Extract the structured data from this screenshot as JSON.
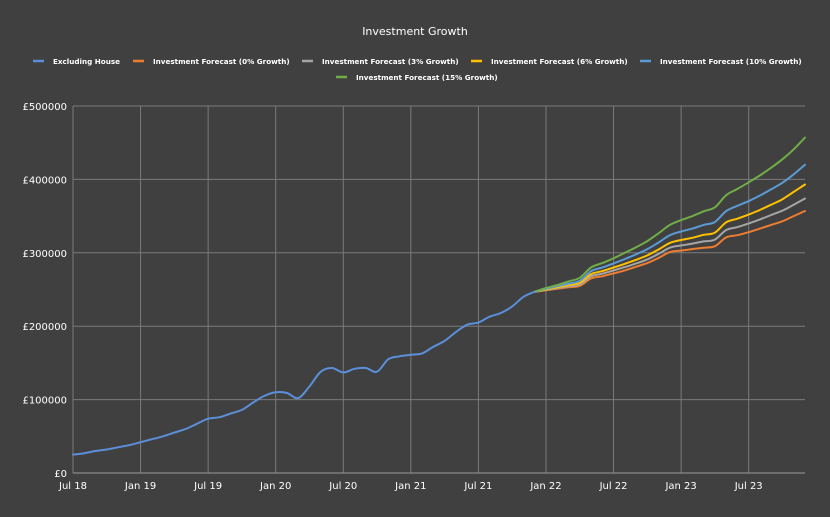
{
  "chart_data": {
    "type": "line",
    "title": "Investment Growth",
    "xlabel": "",
    "ylabel": "",
    "ylim": [
      0,
      500000
    ],
    "yticks": [
      0,
      100000,
      200000,
      300000,
      400000,
      500000
    ],
    "ytick_labels": [
      "£0",
      "£100000",
      "£200000",
      "£300000",
      "£400000",
      "£500000"
    ],
    "xlim": [
      "2018-07",
      "2023-12"
    ],
    "xtick_labels": [
      "Jul 18",
      "Jan 19",
      "Jul 19",
      "Jan 20",
      "Jul 20",
      "Jan 21",
      "Jul 21",
      "Jan 22",
      "Jul 22",
      "Jan 23",
      "Jul 23"
    ],
    "grid": true,
    "legend_position": "top",
    "series": [
      {
        "name": "Excluding House",
        "color": "#5b8fd9",
        "points": [
          [
            "2018-07",
            25000
          ],
          [
            "2018-08",
            27000
          ],
          [
            "2018-09",
            30000
          ],
          [
            "2018-10",
            32000
          ],
          [
            "2018-11",
            35000
          ],
          [
            "2018-12",
            38000
          ],
          [
            "2019-01",
            42000
          ],
          [
            "2019-02",
            46000
          ],
          [
            "2019-03",
            50000
          ],
          [
            "2019-04",
            55000
          ],
          [
            "2019-05",
            60000
          ],
          [
            "2019-06",
            67000
          ],
          [
            "2019-07",
            74000
          ],
          [
            "2019-08",
            76000
          ],
          [
            "2019-09",
            81000
          ],
          [
            "2019-10",
            86000
          ],
          [
            "2019-11",
            96000
          ],
          [
            "2019-12",
            105000
          ],
          [
            "2020-01",
            110000
          ],
          [
            "2020-02",
            109000
          ],
          [
            "2020-03",
            102000
          ],
          [
            "2020-04",
            118000
          ],
          [
            "2020-05",
            138000
          ],
          [
            "2020-06",
            143000
          ],
          [
            "2020-07",
            137000
          ],
          [
            "2020-08",
            142000
          ],
          [
            "2020-09",
            143000
          ],
          [
            "2020-10",
            138000
          ],
          [
            "2020-11",
            155000
          ],
          [
            "2020-12",
            159000
          ],
          [
            "2021-01",
            161000
          ],
          [
            "2021-02",
            163000
          ],
          [
            "2021-03",
            172000
          ],
          [
            "2021-04",
            180000
          ],
          [
            "2021-05",
            192000
          ],
          [
            "2021-06",
            202000
          ],
          [
            "2021-07",
            205000
          ],
          [
            "2021-08",
            213000
          ],
          [
            "2021-09",
            218000
          ],
          [
            "2021-10",
            227000
          ],
          [
            "2021-11",
            240000
          ],
          [
            "2021-12",
            247000
          ]
        ]
      },
      {
        "name": "Investment Forecast (0% Growth)",
        "color": "#ed7d31",
        "points": [
          [
            "2021-12",
            247000
          ],
          [
            "2022-01",
            249000
          ],
          [
            "2022-02",
            251000
          ],
          [
            "2022-03",
            253000
          ],
          [
            "2022-04",
            255000
          ],
          [
            "2022-05",
            265000
          ],
          [
            "2022-06",
            268000
          ],
          [
            "2022-07",
            272000
          ],
          [
            "2022-08",
            276000
          ],
          [
            "2022-09",
            281000
          ],
          [
            "2022-10",
            286000
          ],
          [
            "2022-11",
            293000
          ],
          [
            "2022-12",
            301000
          ],
          [
            "2023-01",
            303000
          ],
          [
            "2023-02",
            305000
          ],
          [
            "2023-03",
            307000
          ],
          [
            "2023-04",
            309000
          ],
          [
            "2023-05",
            321000
          ],
          [
            "2023-06",
            324000
          ],
          [
            "2023-07",
            328000
          ],
          [
            "2023-08",
            333000
          ],
          [
            "2023-09",
            338000
          ],
          [
            "2023-10",
            343000
          ],
          [
            "2023-11",
            350000
          ],
          [
            "2023-12",
            357000
          ]
        ]
      },
      {
        "name": "Investment Forecast (3% Growth)",
        "color": "#a5a5a5",
        "points": [
          [
            "2021-12",
            247000
          ],
          [
            "2022-01",
            249500
          ],
          [
            "2022-02",
            252000
          ],
          [
            "2022-03",
            254500
          ],
          [
            "2022-04",
            257000
          ],
          [
            "2022-05",
            268000
          ],
          [
            "2022-06",
            271500
          ],
          [
            "2022-07",
            276000
          ],
          [
            "2022-08",
            280500
          ],
          [
            "2022-09",
            285500
          ],
          [
            "2022-10",
            291000
          ],
          [
            "2022-11",
            298500
          ],
          [
            "2022-12",
            307000
          ],
          [
            "2023-01",
            310000
          ],
          [
            "2023-02",
            312500
          ],
          [
            "2023-03",
            315500
          ],
          [
            "2023-04",
            318000
          ],
          [
            "2023-05",
            331000
          ],
          [
            "2023-06",
            335000
          ],
          [
            "2023-07",
            340000
          ],
          [
            "2023-08",
            345500
          ],
          [
            "2023-09",
            351500
          ],
          [
            "2023-10",
            357500
          ],
          [
            "2023-11",
            365500
          ],
          [
            "2023-12",
            374000
          ]
        ]
      },
      {
        "name": "Investment Forecast (6% Growth)",
        "color": "#ffc000",
        "points": [
          [
            "2021-12",
            247000
          ],
          [
            "2022-01",
            250000
          ],
          [
            "2022-02",
            253000
          ],
          [
            "2022-03",
            256000
          ],
          [
            "2022-04",
            259000
          ],
          [
            "2022-05",
            271000
          ],
          [
            "2022-06",
            275000
          ],
          [
            "2022-07",
            280000
          ],
          [
            "2022-08",
            285000
          ],
          [
            "2022-09",
            290500
          ],
          [
            "2022-10",
            296500
          ],
          [
            "2022-11",
            304500
          ],
          [
            "2022-12",
            313500
          ],
          [
            "2023-01",
            317500
          ],
          [
            "2023-02",
            320500
          ],
          [
            "2023-03",
            324500
          ],
          [
            "2023-04",
            327500
          ],
          [
            "2023-05",
            341500
          ],
          [
            "2023-06",
            346500
          ],
          [
            "2023-07",
            352000
          ],
          [
            "2023-08",
            358500
          ],
          [
            "2023-09",
            365500
          ],
          [
            "2023-10",
            373000
          ],
          [
            "2023-11",
            383000
          ],
          [
            "2023-12",
            393000
          ]
        ]
      },
      {
        "name": "Investment Forecast (10% Growth)",
        "color": "#5b9bd5",
        "points": [
          [
            "2021-12",
            247000
          ],
          [
            "2022-01",
            251000
          ],
          [
            "2022-02",
            254500
          ],
          [
            "2022-03",
            258000
          ],
          [
            "2022-04",
            262000
          ],
          [
            "2022-05",
            275000
          ],
          [
            "2022-06",
            280000
          ],
          [
            "2022-07",
            285500
          ],
          [
            "2022-08",
            291500
          ],
          [
            "2022-09",
            298000
          ],
          [
            "2022-10",
            305000
          ],
          [
            "2022-11",
            314000
          ],
          [
            "2022-12",
            324000
          ],
          [
            "2023-01",
            329000
          ],
          [
            "2023-02",
            333000
          ],
          [
            "2023-03",
            338000
          ],
          [
            "2023-04",
            342000
          ],
          [
            "2023-05",
            357000
          ],
          [
            "2023-06",
            364000
          ],
          [
            "2023-07",
            370500
          ],
          [
            "2023-08",
            378000
          ],
          [
            "2023-09",
            386500
          ],
          [
            "2023-10",
            395500
          ],
          [
            "2023-11",
            407000
          ],
          [
            "2023-12",
            420000
          ]
        ]
      },
      {
        "name": "Investment Forecast (15% Growth)",
        "color": "#70ad47",
        "points": [
          [
            "2021-12",
            247000
          ],
          [
            "2022-01",
            252000
          ],
          [
            "2022-02",
            256000
          ],
          [
            "2022-03",
            261000
          ],
          [
            "2022-04",
            266000
          ],
          [
            "2022-05",
            280000
          ],
          [
            "2022-06",
            286000
          ],
          [
            "2022-07",
            292500
          ],
          [
            "2022-08",
            300000
          ],
          [
            "2022-09",
            307500
          ],
          [
            "2022-10",
            316000
          ],
          [
            "2022-11",
            326500
          ],
          [
            "2022-12",
            338000
          ],
          [
            "2023-01",
            344500
          ],
          [
            "2023-02",
            350000
          ],
          [
            "2023-03",
            356500
          ],
          [
            "2023-04",
            362000
          ],
          [
            "2023-05",
            378500
          ],
          [
            "2023-06",
            387000
          ],
          [
            "2023-07",
            396000
          ],
          [
            "2023-08",
            405500
          ],
          [
            "2023-09",
            416000
          ],
          [
            "2023-10",
            427500
          ],
          [
            "2023-11",
            441000
          ],
          [
            "2023-12",
            457000
          ]
        ]
      }
    ]
  }
}
